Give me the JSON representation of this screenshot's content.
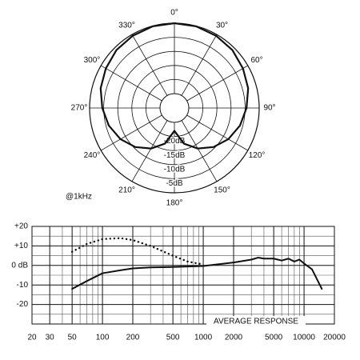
{
  "chart_data": [
    {
      "type": "polar",
      "annotation": "@1kHz",
      "rlim": [
        -25,
        0
      ],
      "rticks": [
        {
          "value": -20,
          "label": "-20dB"
        },
        {
          "value": -15,
          "label": "-15dB"
        },
        {
          "value": -10,
          "label": "-10dB"
        },
        {
          "value": -5,
          "label": "-5dB"
        }
      ],
      "angle_ticks": [
        {
          "value": 0,
          "label": "0°"
        },
        {
          "value": 30,
          "label": "30°"
        },
        {
          "value": 60,
          "label": "60°"
        },
        {
          "value": 90,
          "label": "90°"
        },
        {
          "value": 120,
          "label": "120°"
        },
        {
          "value": 150,
          "label": "150°"
        },
        {
          "value": 180,
          "label": "180°"
        },
        {
          "value": 210,
          "label": "210°"
        },
        {
          "value": 240,
          "label": "240°"
        },
        {
          "value": 270,
          "label": "270°"
        },
        {
          "value": 300,
          "label": "300°"
        },
        {
          "value": 330,
          "label": "330°"
        }
      ],
      "series": [
        {
          "color": "#111111",
          "theta": [
            0,
            15,
            30,
            45,
            60,
            75,
            90,
            105,
            120,
            135,
            150,
            165,
            180,
            195,
            210,
            225,
            240,
            255,
            270,
            285,
            300,
            315,
            330,
            345,
            360
          ],
          "values": [
            0,
            -0.1,
            -0.5,
            -1,
            -2,
            -3,
            -4.5,
            -6,
            -8,
            -10.5,
            -13.5,
            -17,
            -22,
            -17,
            -13.5,
            -10.5,
            -8,
            -6,
            -4.5,
            -3,
            -2,
            -1,
            -0.5,
            -0.1,
            0
          ]
        }
      ]
    },
    {
      "type": "line",
      "annotation": "AVERAGE RESPONSE",
      "xscale": "log",
      "xlim": [
        20,
        20000
      ],
      "xticks": [
        20,
        30,
        50,
        100,
        200,
        500,
        1000,
        2000,
        5000,
        10000,
        20000
      ],
      "x_minor_ticks": [
        40,
        60,
        70,
        80,
        90,
        300,
        400,
        600,
        700,
        800,
        900,
        3000,
        4000,
        6000,
        7000,
        8000,
        9000
      ],
      "ylim": [
        -30,
        20
      ],
      "yticks": [
        {
          "value": 20,
          "label": "+20"
        },
        {
          "value": 10,
          "label": "+10"
        },
        {
          "value": 0,
          "label": "0 dB"
        },
        -10,
        -20
      ],
      "y_minor_ticks": [
        15,
        5,
        -5,
        -15,
        -25
      ],
      "grid": true,
      "series": [
        {
          "color": "#111111",
          "style": "solid",
          "x": [
            50,
            70,
            100,
            150,
            200,
            300,
            500,
            1000,
            2000,
            3000,
            3500,
            4000,
            5000,
            6000,
            7000,
            8000,
            9000,
            10000,
            12000,
            15000
          ],
          "values": [
            -12,
            -8,
            -4,
            -2.5,
            -1.5,
            -1,
            -0.8,
            -0.3,
            1.5,
            3,
            4,
            3.5,
            3.5,
            2.5,
            3.5,
            2,
            3,
            1,
            -2,
            -12
          ]
        },
        {
          "color": "#111111",
          "style": "dotted",
          "x": [
            50,
            70,
            100,
            150,
            200,
            300,
            500,
            700,
            1000
          ],
          "values": [
            7,
            11,
            13.5,
            14,
            13,
            10,
            5,
            2,
            0.5
          ]
        }
      ]
    }
  ]
}
